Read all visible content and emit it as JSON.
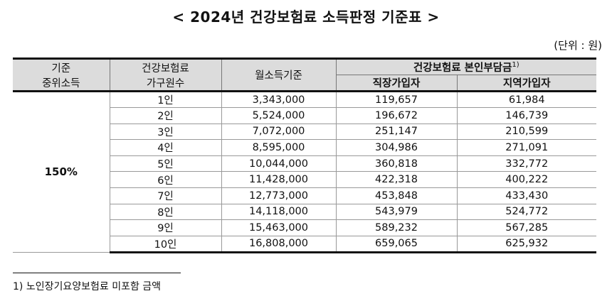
{
  "title": "< 2024년 건강보험료 소득판정 기준표 >",
  "unit": "(단위 : 원)",
  "header": {
    "median_income_line1": "기준",
    "median_income_line2": "중위소득",
    "household_line1": "건강보험료",
    "household_line2": "가구원수",
    "monthly_income": "월소득기준",
    "premium_group": "건강보험료 본인부담금",
    "premium_group_sup": "1)",
    "employee": "직장가입자",
    "regional": "지역가입자"
  },
  "median_income_value": "150%",
  "rows": [
    {
      "household": "1인",
      "income": "3,343,000",
      "employee": "119,657",
      "regional": "61,984"
    },
    {
      "household": "2인",
      "income": "5,524,000",
      "employee": "196,672",
      "regional": "146,739"
    },
    {
      "household": "3인",
      "income": "7,072,000",
      "employee": "251,147",
      "regional": "210,599"
    },
    {
      "household": "4인",
      "income": "8,595,000",
      "employee": "304,986",
      "regional": "271,091"
    },
    {
      "household": "5인",
      "income": "10,044,000",
      "employee": "360,818",
      "regional": "332,772"
    },
    {
      "household": "6인",
      "income": "11,428,000",
      "employee": "422,318",
      "regional": "400,222"
    },
    {
      "household": "7인",
      "income": "12,773,000",
      "employee": "453,848",
      "regional": "433,430"
    },
    {
      "household": "8인",
      "income": "14,118,000",
      "employee": "543,979",
      "regional": "524,772"
    },
    {
      "household": "9인",
      "income": "15,463,000",
      "employee": "589,232",
      "regional": "567,285"
    },
    {
      "household": "10인",
      "income": "16,808,000",
      "employee": "659,065",
      "regional": "625,932"
    }
  ],
  "footnote": "1) 노인장기요양보험료 미포함 금액"
}
